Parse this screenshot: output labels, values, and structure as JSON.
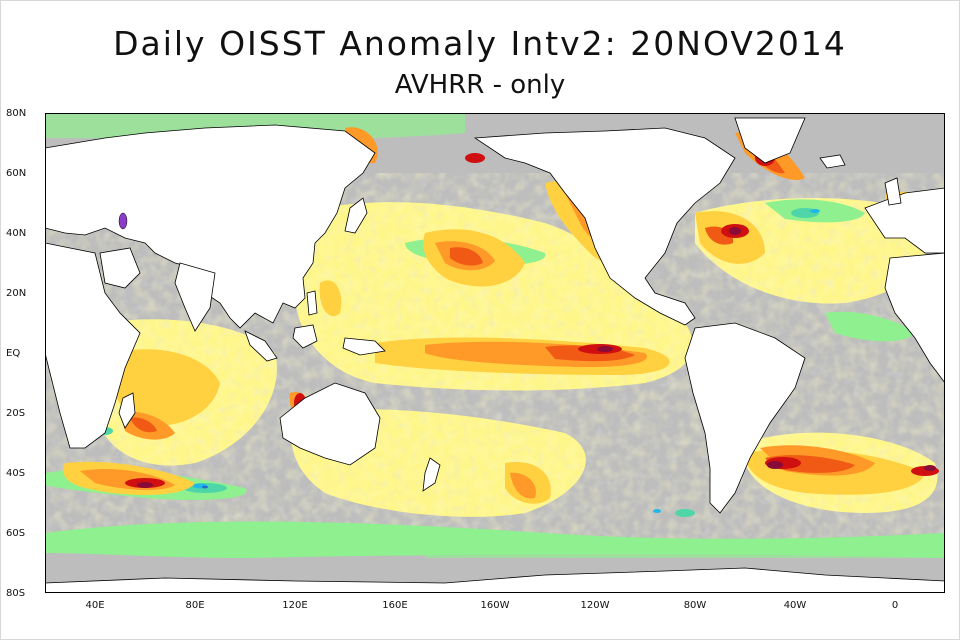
{
  "figure": {
    "title": "Daily OISST Anomaly Intv2: 20NOV2014",
    "subtitle": "AVHRR - only"
  },
  "axes": {
    "lat_labels": [
      "80N",
      "60N",
      "40N",
      "20N",
      "EQ",
      "20S",
      "40S",
      "60S",
      "80S"
    ],
    "lon_labels": [
      "40E",
      "80E",
      "120E",
      "160E",
      "160W",
      "120W",
      "80W",
      "40W",
      "0"
    ]
  },
  "colors": {
    "land": "#ffffff",
    "coastline": "#000000",
    "near_zero": "#bdbdbd",
    "cool_slight": "#8ef08e",
    "cool_moderate": "#4fd6a8",
    "cool_strong": "#1fb8e8",
    "cool_extreme": "#2070d0",
    "warm_slight": "#fff68a",
    "warm_moderate": "#ffd040",
    "warm_strong": "#ff9a28",
    "warm_high": "#f05a14",
    "warm_very_high": "#d01010",
    "warm_extreme": "#8a0a38"
  }
}
